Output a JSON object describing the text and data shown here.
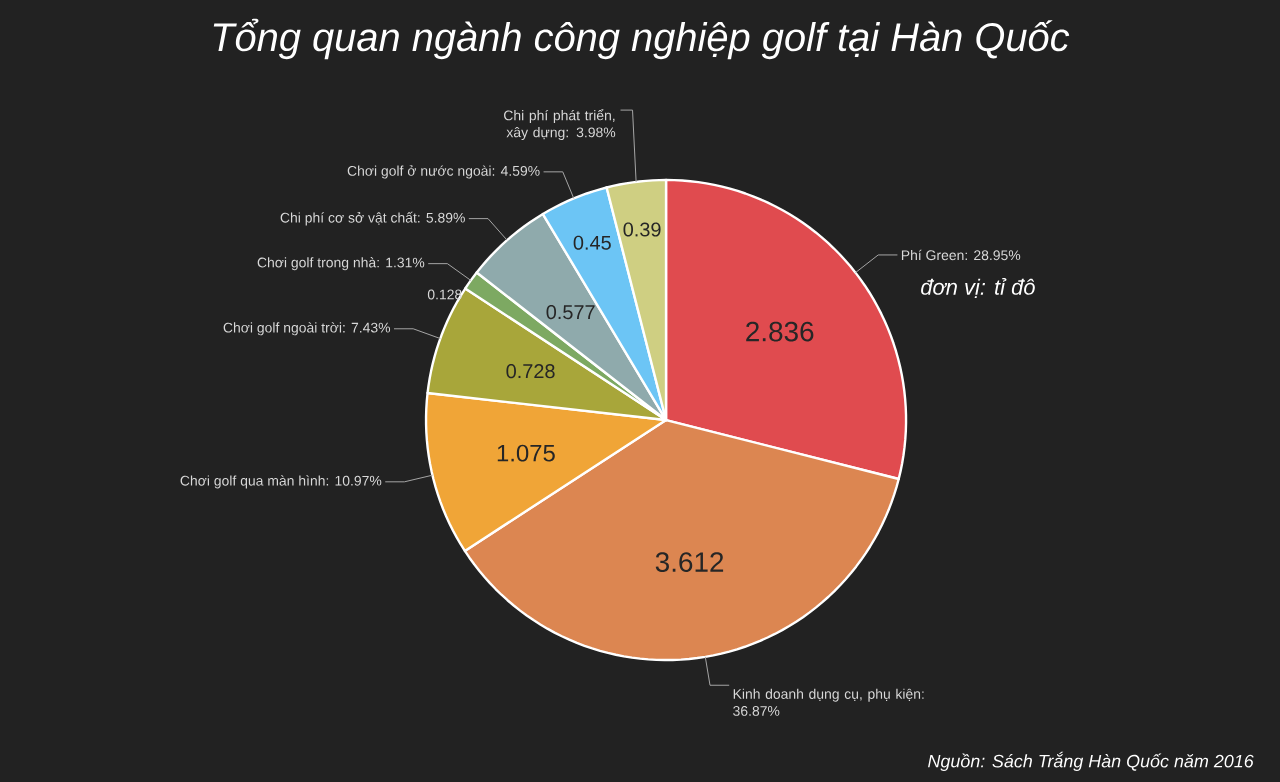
{
  "chart_data": {
    "type": "pie",
    "title": "Tổng quan ngành công nghiệp golf tại Hàn Quốc",
    "categories": [
      "Phí Green: 28.95%",
      "Kinh doanh dụng cụ, phụ kiện: 36.87%",
      "Chơi golf qua màn hình: 10.97%",
      "Chơi golf ngoài trời: 7.43%",
      "Chơi golf trong nhà: 1.31%",
      "Chi phí cơ sở vật chất: 5.89%",
      "Chơi golf ở nước ngoài: 4.59%",
      "Chi phí phát triển, xây dựng: 3.98%"
    ],
    "values": [
      2.836,
      3.612,
      1.075,
      0.728,
      0.128,
      0.577,
      0.45,
      0.39
    ],
    "colors": [
      "#e04b4f",
      "#dc8651",
      "#f0a537",
      "#a8a63a",
      "#7da962",
      "#8faaac",
      "#6cc5f5",
      "#cfcf82"
    ],
    "data_labels": true,
    "annotations": [
      "đơn vị: tỉ đô",
      "Nguồn: Sách Trắng Hàn Quốc năm 2016"
    ]
  }
}
